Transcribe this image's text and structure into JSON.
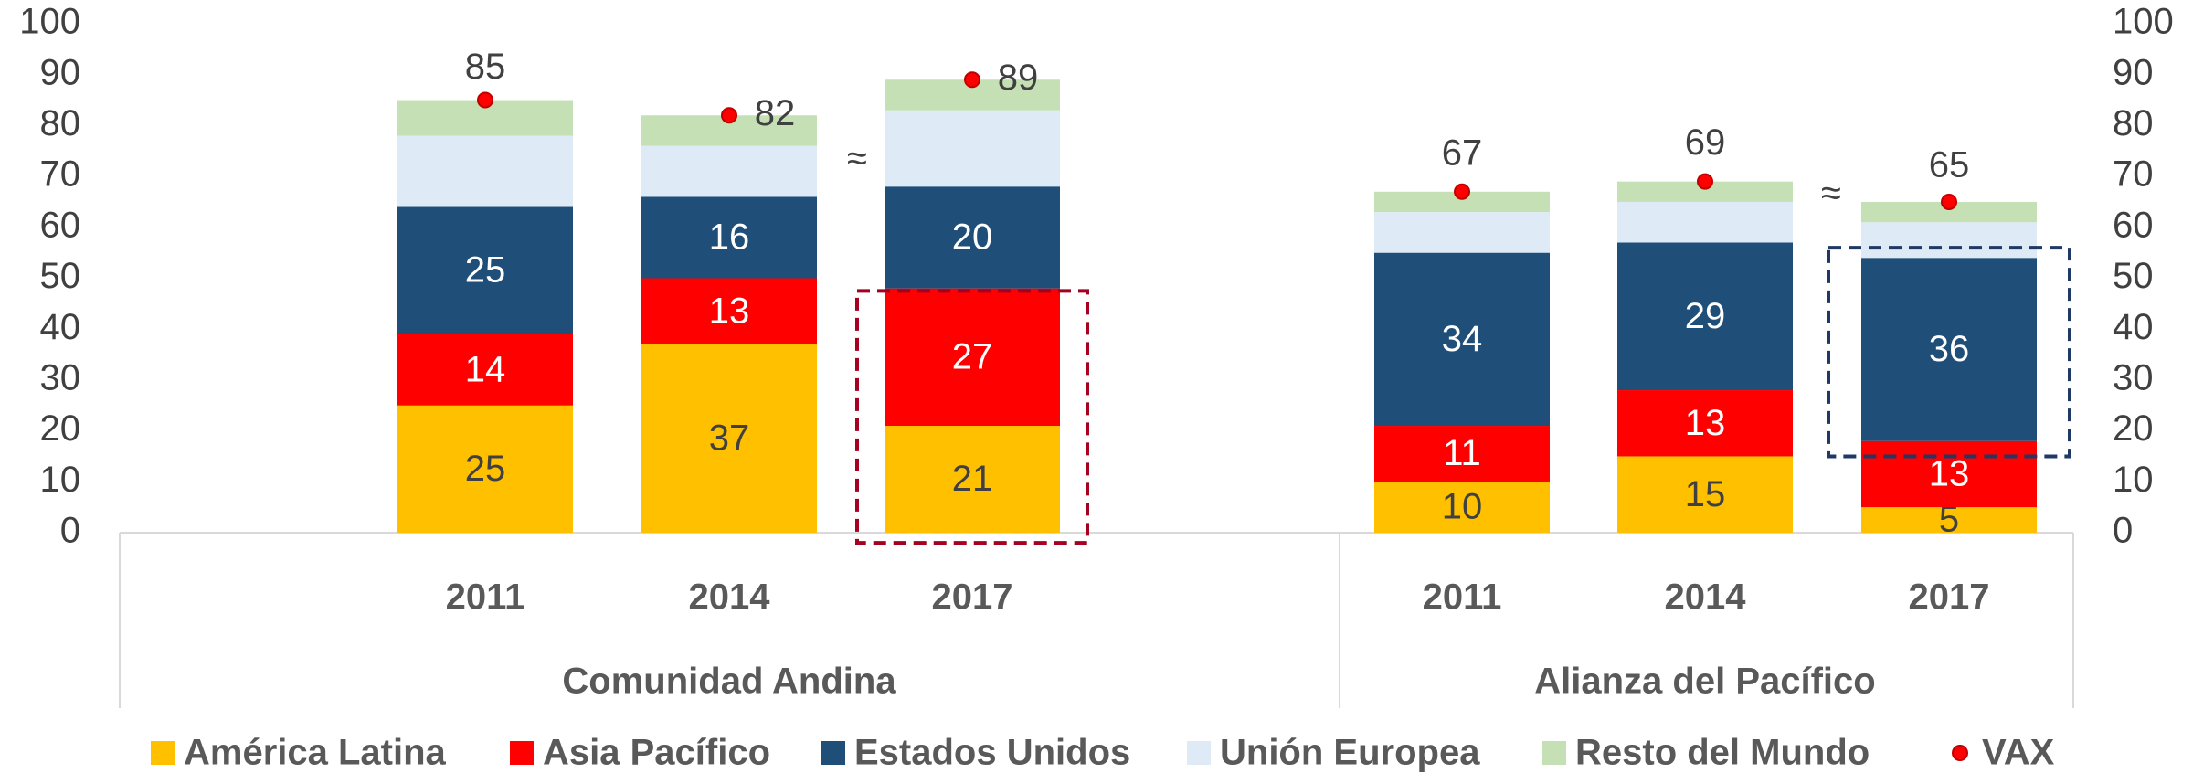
{
  "chart_data": {
    "type": "stacked_bar",
    "categories": [
      "2011",
      "2014",
      "2017",
      "2011",
      "2014",
      "2017"
    ],
    "groups": [
      "Comunidad Andina",
      "Alianza del Pacífico"
    ],
    "series": [
      {
        "name": "América Latina",
        "color": "#FFC000",
        "values": [
          25,
          37,
          21,
          10,
          15,
          5
        ],
        "labels": true
      },
      {
        "name": "Asia Pacífico",
        "color": "#FF0000",
        "values": [
          14,
          13,
          27,
          11,
          13,
          13
        ],
        "labels": true
      },
      {
        "name": "Estados Unidos",
        "color": "#1F4E79",
        "values": [
          25,
          16,
          20,
          34,
          29,
          36
        ],
        "labels": true
      },
      {
        "name": "Unión Europea",
        "color": "#DEEBF7",
        "values": [
          14,
          10,
          15,
          8,
          8,
          7
        ],
        "labels": false
      },
      {
        "name": "Resto del Mundo",
        "color": "#C5E0B4",
        "values": [
          7,
          6,
          6,
          4,
          4,
          4
        ],
        "labels": false
      },
      {
        "name": "VAX",
        "color": "#FF0000",
        "kind": "point",
        "values": [
          85,
          82,
          89,
          67,
          69,
          65
        ],
        "labels": true
      }
    ],
    "annotations": [
      "≈",
      "≈"
    ],
    "ylim": [
      0,
      100
    ],
    "yticks": [
      0,
      10,
      20,
      30,
      40,
      50,
      60,
      70,
      80,
      90,
      100
    ],
    "y2lim": [
      0,
      100
    ],
    "y2ticks": [
      0,
      10,
      20,
      30,
      40,
      50,
      60,
      70,
      80,
      90,
      100
    ]
  }
}
